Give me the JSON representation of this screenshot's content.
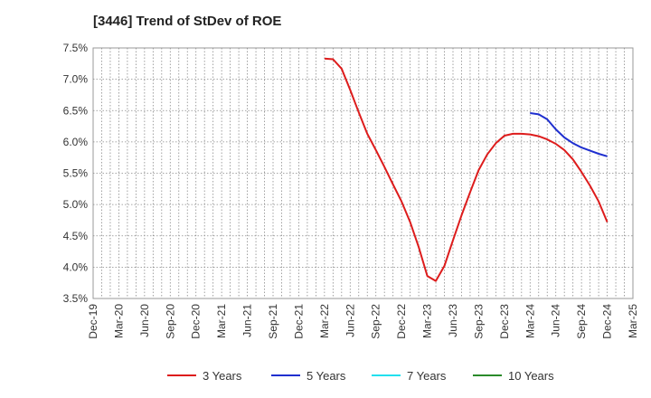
{
  "chart_data": {
    "type": "line",
    "title": "[3446]  Trend of StDev of ROE",
    "xlabel": "",
    "ylabel": "",
    "categories": [
      "Dec-19",
      "Mar-20",
      "Jun-20",
      "Sep-20",
      "Dec-20",
      "Mar-21",
      "Jun-21",
      "Sep-21",
      "Dec-21",
      "Mar-22",
      "Jun-22",
      "Sep-22",
      "Dec-22",
      "Mar-23",
      "Jun-23",
      "Sep-23",
      "Dec-23",
      "Mar-24",
      "Jun-24",
      "Sep-24",
      "Dec-24",
      "Mar-25"
    ],
    "y_ticks": [
      "7.5%",
      "7.0%",
      "6.5%",
      "6.0%",
      "5.5%",
      "5.0%",
      "4.5%",
      "4.0%",
      "3.5%"
    ],
    "ylim": [
      3.5,
      7.5
    ],
    "grid": true,
    "legend_position": "bottom",
    "series": [
      {
        "name": "3 Years",
        "color": "#dd1c1c",
        "points": [
          [
            "Mar-22",
            7.33
          ],
          [
            "Apr-22",
            7.32
          ],
          [
            "May-22",
            7.17
          ],
          [
            "Jun-22",
            6.83
          ],
          [
            "Jul-22",
            6.47
          ],
          [
            "Aug-22",
            6.13
          ],
          [
            "Sep-22",
            5.87
          ],
          [
            "Oct-22",
            5.6
          ],
          [
            "Nov-22",
            5.32
          ],
          [
            "Dec-22",
            5.05
          ],
          [
            "Jan-23",
            4.72
          ],
          [
            "Feb-23",
            4.32
          ],
          [
            "Mar-23",
            3.86
          ],
          [
            "Apr-23",
            3.78
          ],
          [
            "May-23",
            4.02
          ],
          [
            "Jun-23",
            4.43
          ],
          [
            "Jul-23",
            4.83
          ],
          [
            "Aug-23",
            5.2
          ],
          [
            "Sep-23",
            5.55
          ],
          [
            "Oct-23",
            5.8
          ],
          [
            "Nov-23",
            5.98
          ],
          [
            "Dec-23",
            6.1
          ],
          [
            "Jan-24",
            6.13
          ],
          [
            "Feb-24",
            6.13
          ],
          [
            "Mar-24",
            6.12
          ],
          [
            "Apr-24",
            6.09
          ],
          [
            "May-24",
            6.04
          ],
          [
            "Jun-24",
            5.97
          ],
          [
            "Jul-24",
            5.87
          ],
          [
            "Aug-24",
            5.72
          ],
          [
            "Sep-24",
            5.52
          ],
          [
            "Oct-24",
            5.3
          ],
          [
            "Nov-24",
            5.05
          ],
          [
            "Dec-24",
            4.72
          ]
        ]
      },
      {
        "name": "5 Years",
        "color": "#1f2fcf",
        "points": [
          [
            "Mar-24",
            6.46
          ],
          [
            "Apr-24",
            6.44
          ],
          [
            "May-24",
            6.36
          ],
          [
            "Jun-24",
            6.2
          ],
          [
            "Jul-24",
            6.07
          ],
          [
            "Aug-24",
            5.98
          ],
          [
            "Sep-24",
            5.91
          ],
          [
            "Oct-24",
            5.86
          ],
          [
            "Nov-24",
            5.81
          ],
          [
            "Dec-24",
            5.77
          ]
        ]
      },
      {
        "name": "7 Years",
        "color": "#22e0ee",
        "points": []
      },
      {
        "name": "10 Years",
        "color": "#2a8a2a",
        "points": []
      }
    ]
  }
}
